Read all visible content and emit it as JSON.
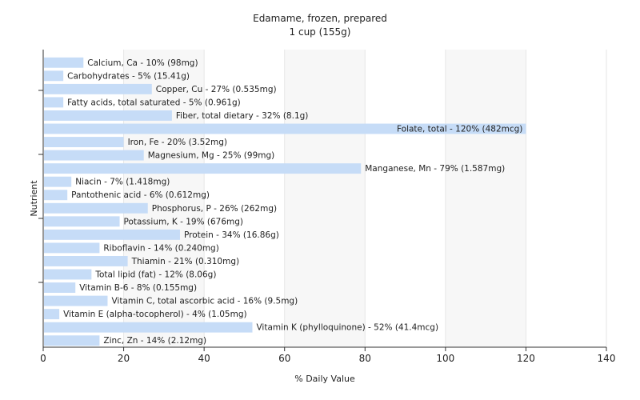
{
  "chart_data": {
    "type": "bar",
    "orientation": "horizontal",
    "title": "Edamame, frozen, prepared",
    "subtitle": "1 cup (155g)",
    "xlabel": "% Daily Value",
    "ylabel": "Nutrient",
    "xlim": [
      0,
      140
    ],
    "xticks": [
      "0",
      "20",
      "40",
      "60",
      "80",
      "100",
      "120",
      "140"
    ],
    "grid": true,
    "bar_color": "#c6dcf7",
    "categories": [
      "Calcium, Ca",
      "Carbohydrates",
      "Copper, Cu",
      "Fatty acids, total saturated",
      "Fiber, total dietary",
      "Folate, total",
      "Iron, Fe",
      "Magnesium, Mg",
      "Manganese, Mn",
      "Niacin",
      "Pantothenic acid",
      "Phosphorus, P",
      "Potassium, K",
      "Protein",
      "Riboflavin",
      "Thiamin",
      "Total lipid (fat)",
      "Vitamin B-6",
      "Vitamin C, total ascorbic acid",
      "Vitamin E (alpha-tocopherol)",
      "Vitamin K (phylloquinone)",
      "Zinc, Zn"
    ],
    "values": [
      10,
      5,
      27,
      5,
      32,
      120,
      20,
      25,
      79,
      7,
      6,
      26,
      19,
      34,
      14,
      21,
      12,
      8,
      16,
      4,
      52,
      14
    ],
    "labels": [
      "Calcium, Ca - 10% (98mg)",
      "Carbohydrates - 5% (15.41g)",
      "Copper, Cu - 27% (0.535mg)",
      "Fatty acids, total saturated - 5% (0.961g)",
      "Fiber, total dietary - 32% (8.1g)",
      "Folate, total - 120% (482mcg)",
      "Iron, Fe - 20% (3.52mg)",
      "Magnesium, Mg - 25% (99mg)",
      "Manganese, Mn - 79% (1.587mg)",
      "Niacin - 7% (1.418mg)",
      "Pantothenic acid - 6% (0.612mg)",
      "Phosphorus, P - 26% (262mg)",
      "Potassium, K - 19% (676mg)",
      "Protein - 34% (16.86g)",
      "Riboflavin - 14% (0.240mg)",
      "Thiamin - 21% (0.310mg)",
      "Total lipid (fat) - 12% (8.06g)",
      "Vitamin B-6 - 8% (0.155mg)",
      "Vitamin C, total ascorbic acid - 16% (9.5mg)",
      "Vitamin E (alpha-tocopherol) - 4% (1.05mg)",
      "Vitamin K (phylloquinone) - 52% (41.4mcg)",
      "Zinc, Zn - 14% (2.12mg)"
    ]
  }
}
